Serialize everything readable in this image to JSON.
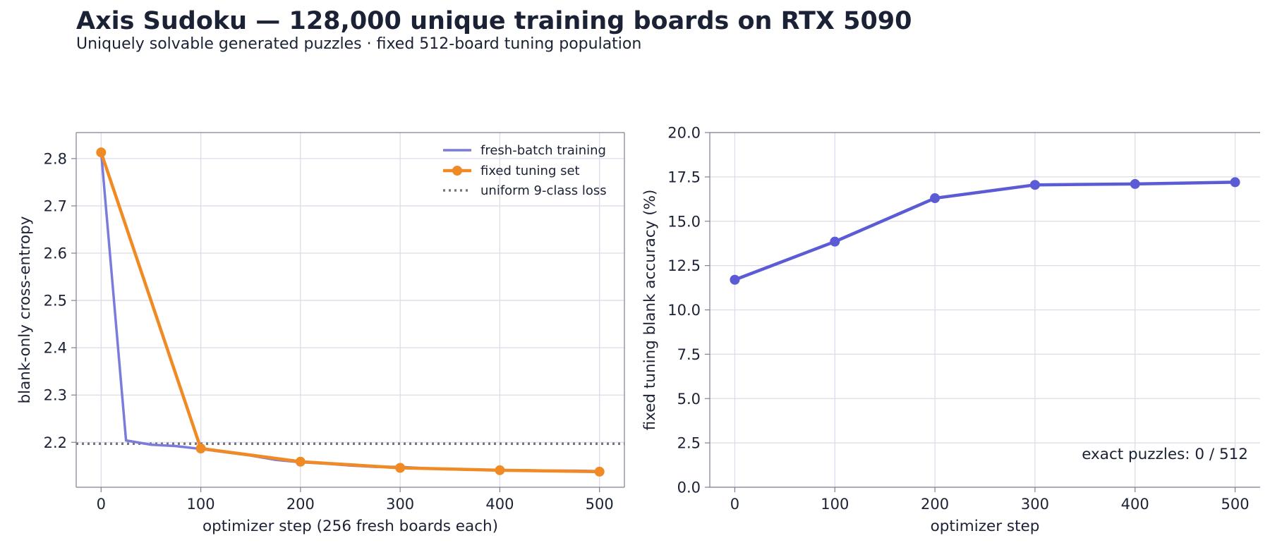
{
  "title": "Axis Sudoku — 128,000 unique training boards on RTX 5090",
  "subtitle": "Uniquely solvable generated puzzles · fixed 512-board tuning population",
  "colors": {
    "fresh": "#7b7bdc",
    "fixed": "#f08a24",
    "uniform": "#75757f",
    "accuracy": "#5b5bd6",
    "grid": "#dcdcea",
    "axis": "#7d8194"
  },
  "chart_data": [
    {
      "type": "line",
      "xlabel": "optimizer step (256 fresh boards each)",
      "ylabel": "blank-only cross-entropy",
      "xlim": [
        -25,
        525
      ],
      "ylim": [
        2.105,
        2.855
      ],
      "xticks": [
        0,
        100,
        200,
        300,
        400,
        500
      ],
      "yticks": [
        2.2,
        2.3,
        2.4,
        2.5,
        2.6,
        2.7,
        2.8
      ],
      "grid": true,
      "legend_position": "top-right",
      "legend": [
        "fresh-batch training",
        "fixed tuning set",
        "uniform 9-class loss"
      ],
      "series": [
        {
          "name": "fresh-batch training",
          "x": [
            0,
            25,
            50,
            75,
            100,
            125,
            150,
            175,
            200,
            225,
            250,
            275,
            300,
            325,
            350,
            375,
            400,
            425,
            450,
            475,
            500
          ],
          "y": [
            2.815,
            2.204,
            2.195,
            2.192,
            2.186,
            2.179,
            2.172,
            2.163,
            2.158,
            2.155,
            2.151,
            2.148,
            2.148,
            2.145,
            2.143,
            2.142,
            2.141,
            2.141,
            2.14,
            2.14,
            2.139
          ]
        },
        {
          "name": "fixed tuning set",
          "x": [
            0,
            100,
            200,
            300,
            400,
            500
          ],
          "y": [
            2.813,
            2.187,
            2.159,
            2.146,
            2.141,
            2.138
          ]
        },
        {
          "name": "uniform 9-class loss",
          "y_constant": 2.197
        }
      ]
    },
    {
      "type": "line",
      "xlabel": "optimizer step",
      "ylabel": "fixed tuning blank accuracy (%)",
      "xlim": [
        -25,
        525
      ],
      "ylim": [
        0,
        20
      ],
      "xticks": [
        0,
        100,
        200,
        300,
        400,
        500
      ],
      "yticks": [
        0.0,
        2.5,
        5.0,
        7.5,
        10.0,
        12.5,
        15.0,
        17.5,
        20.0
      ],
      "grid": true,
      "annotation": "exact puzzles: 0 / 512",
      "series": [
        {
          "x": [
            0,
            100,
            200,
            300,
            400,
            500
          ],
          "y": [
            11.7,
            13.85,
            16.3,
            17.05,
            17.1,
            17.2
          ]
        }
      ]
    }
  ]
}
